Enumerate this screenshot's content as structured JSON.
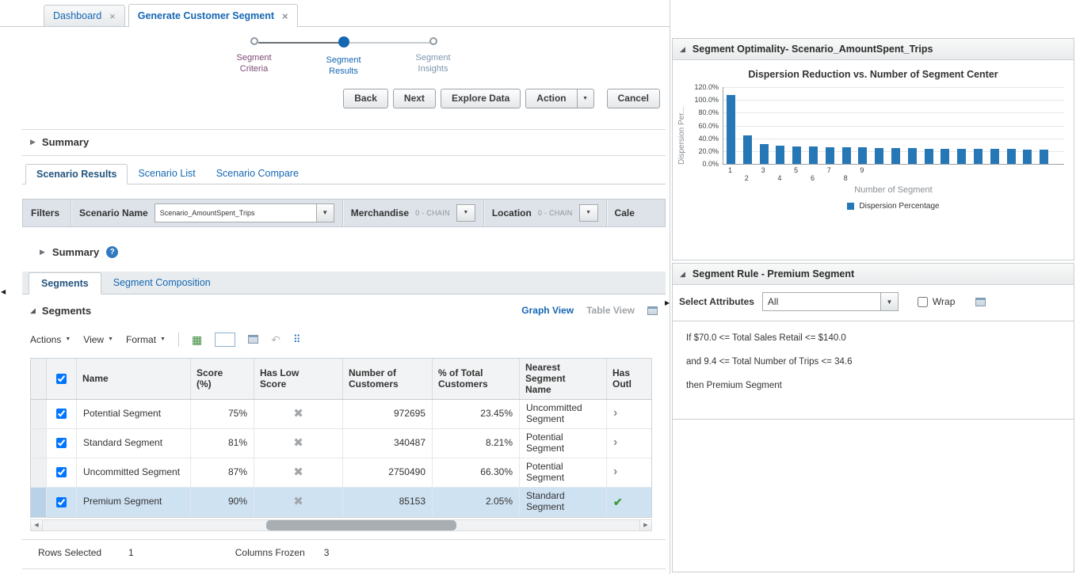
{
  "colors": {
    "accent": "#1567b3",
    "bar": "#2677b5",
    "selected_row": "#cfe2f2",
    "success_check": "#3c9b35"
  },
  "tabbar": {
    "tabs": [
      {
        "label": "Dashboard"
      },
      {
        "label": "Generate Customer Segment"
      }
    ]
  },
  "stepper": {
    "steps": [
      {
        "line1": "Segment",
        "line2": "Criteria"
      },
      {
        "line1": "Segment",
        "line2": "Results"
      },
      {
        "line1": "Segment",
        "line2": "Insights"
      }
    ]
  },
  "action_bar": {
    "back": "Back",
    "next": "Next",
    "explore_data": "Explore Data",
    "action": "Action",
    "cancel": "Cancel"
  },
  "summary": {
    "title": "Summary"
  },
  "scenario_tabs": {
    "results": "Scenario Results",
    "list": "Scenario List",
    "compare": "Scenario Compare"
  },
  "filters": {
    "label": "Filters",
    "scenario_name_label": "Scenario Name",
    "scenario_name_value": "Scenario_AmountSpent_Trips",
    "merchandise_label": "Merchandise",
    "merchandise_value": "0 - CHAIN",
    "location_label": "Location",
    "location_value": "0 - CHAIN",
    "calendar_label": "Cale"
  },
  "inner_summary": {
    "title": "Summary"
  },
  "segment_tabs": {
    "segments": "Segments",
    "composition": "Segment Composition"
  },
  "segments_panel": {
    "title": "Segments",
    "graph_view": "Graph View",
    "table_view": "Table View"
  },
  "table_toolbar": {
    "actions": "Actions",
    "view": "View",
    "format": "Format"
  },
  "segments_table": {
    "columns": {
      "name": "Name",
      "score": "Score (%)",
      "has_low_score": "Has Low Score",
      "customers": "Number of Customers",
      "pct": "% of Total Customers",
      "nearest": "Nearest Segment Name",
      "outliers": "Has Outl"
    },
    "rows": [
      {
        "checked": true,
        "name": "Potential Segment",
        "score": "75%",
        "customers": "972695",
        "pct": "23.45%",
        "nearest": "Uncommitted Segment",
        "low_score_icon": "cross",
        "outlier_icon": "chevron"
      },
      {
        "checked": true,
        "name": "Standard Segment",
        "score": "81%",
        "customers": "340487",
        "pct": "8.21%",
        "nearest": "Potential Segment",
        "low_score_icon": "cross",
        "outlier_icon": "chevron"
      },
      {
        "checked": true,
        "name": "Uncommitted Segment",
        "score": "87%",
        "customers": "2750490",
        "pct": "66.30%",
        "nearest": "Potential Segment",
        "low_score_icon": "cross",
        "outlier_icon": "chevron"
      },
      {
        "checked": true,
        "selected": true,
        "name": "Premium Segment",
        "score": "90%",
        "customers": "85153",
        "pct": "2.05%",
        "nearest": "Standard Segment",
        "low_score_icon": "cross",
        "outlier_icon": "check"
      }
    ]
  },
  "table_footer": {
    "rows_selected_label": "Rows Selected",
    "rows_selected_value": "1",
    "columns_frozen_label": "Columns Frozen",
    "columns_frozen_value": "3"
  },
  "optimality_panel": {
    "title": "Segment Optimality- Scenario_AmountSpent_Trips"
  },
  "chart_data": {
    "type": "bar",
    "title": "Dispersion Reduction vs. Number of Segment Center",
    "ylabel": "Dispersion Per...",
    "xlabel": "Number of Segment",
    "legend": "Dispersion Percentage",
    "ylim": [
      0,
      120
    ],
    "ytick_labels": [
      "120.0%",
      "100.0%",
      "80.0%",
      "60.0%",
      "40.0%",
      "20.0%",
      "0.0%"
    ],
    "xtick_labels": [
      "1",
      "2",
      "3",
      "4",
      "5",
      "6",
      "7",
      "8",
      "9"
    ],
    "x": [
      1,
      2,
      3,
      4,
      5,
      6,
      7,
      8,
      9,
      10,
      11,
      12,
      13,
      14,
      15,
      16,
      17,
      18,
      19,
      20
    ],
    "values": [
      108,
      45,
      31,
      28,
      27,
      27,
      26,
      26,
      26,
      25,
      25,
      25,
      24,
      24,
      24,
      23,
      23,
      23,
      22,
      22
    ],
    "unit": "percent",
    "grid": true,
    "legend_position": "bottom"
  },
  "rule_panel": {
    "title": "Segment Rule - Premium Segment",
    "select_attributes_label": "Select Attributes",
    "select_attributes_value": "All",
    "wrap_label": "Wrap",
    "rules": [
      "If $70.0 <= Total Sales Retail <= $140.0",
      "and 9.4 <= Total Number of Trips <= 34.6",
      "then Premium Segment"
    ]
  }
}
